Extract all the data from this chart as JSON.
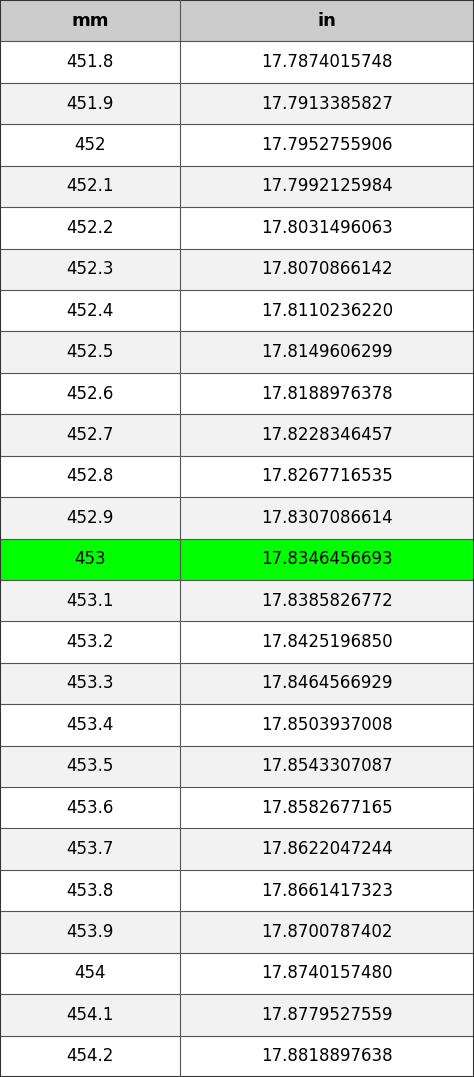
{
  "headers": [
    "mm",
    "in"
  ],
  "rows": [
    [
      "451.8",
      "17.7874015748"
    ],
    [
      "451.9",
      "17.7913385827"
    ],
    [
      "452",
      "17.7952755906"
    ],
    [
      "452.1",
      "17.7992125984"
    ],
    [
      "452.2",
      "17.8031496063"
    ],
    [
      "452.3",
      "17.8070866142"
    ],
    [
      "452.4",
      "17.8110236220"
    ],
    [
      "452.5",
      "17.8149606299"
    ],
    [
      "452.6",
      "17.8188976378"
    ],
    [
      "452.7",
      "17.8228346457"
    ],
    [
      "452.8",
      "17.8267716535"
    ],
    [
      "452.9",
      "17.8307086614"
    ],
    [
      "453",
      "17.8346456693"
    ],
    [
      "453.1",
      "17.8385826772"
    ],
    [
      "453.2",
      "17.8425196850"
    ],
    [
      "453.3",
      "17.8464566929"
    ],
    [
      "453.4",
      "17.8503937008"
    ],
    [
      "453.5",
      "17.8543307087"
    ],
    [
      "453.6",
      "17.8582677165"
    ],
    [
      "453.7",
      "17.8622047244"
    ],
    [
      "453.8",
      "17.8661417323"
    ],
    [
      "453.9",
      "17.8700787402"
    ],
    [
      "454",
      "17.8740157480"
    ],
    [
      "454.1",
      "17.8779527559"
    ],
    [
      "454.2",
      "17.8818897638"
    ]
  ],
  "highlight_row": 12,
  "header_bg": "#cccccc",
  "row_bg_odd": "#f2f2f2",
  "row_bg_even": "#ffffff",
  "highlight_bg": "#00ff00",
  "text_color": "#000000",
  "border_color": "#555555",
  "outer_border_color": "#333333",
  "header_fontsize": 13,
  "cell_fontsize": 12,
  "col_split": 0.38
}
